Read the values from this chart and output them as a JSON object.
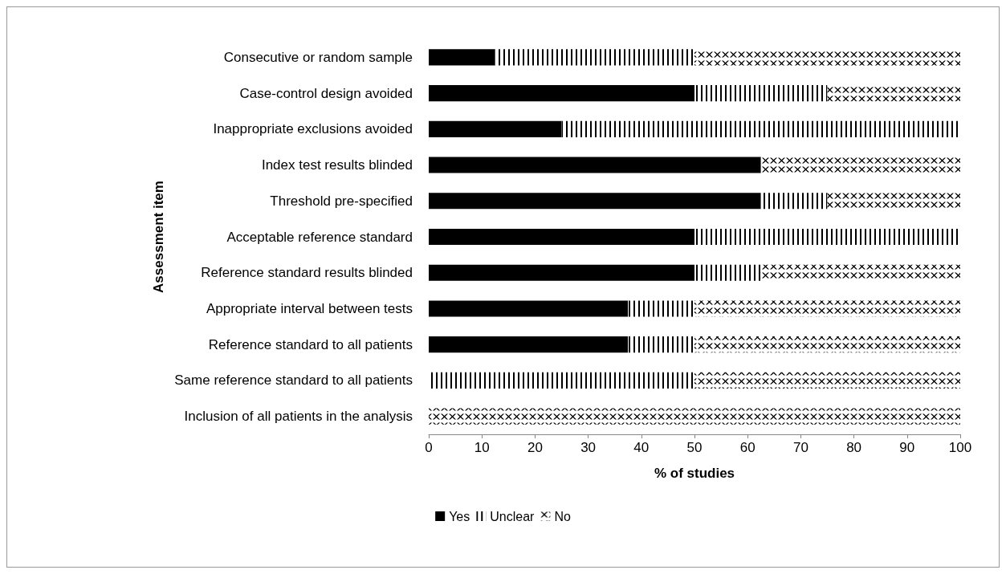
{
  "chart_data": {
    "type": "bar",
    "orientation": "horizontal",
    "stacked": true,
    "xlabel": "% of studies",
    "ylabel": "Assessment item",
    "categories": [
      "Consecutive or random sample",
      "Case-control design avoided",
      "Inappropriate exclusions avoided",
      "Index test results blinded",
      "Threshold pre-specified",
      "Acceptable reference standard",
      "Reference standard results blinded",
      "Appropriate interval between tests",
      "Reference standard to all patients",
      "Same reference standard to all patients",
      "Inclusion of all patients in the analysis"
    ],
    "series": [
      {
        "name": "Yes",
        "color": "#000000",
        "values": [
          12.5,
          50,
          25,
          62.5,
          62.5,
          50,
          50,
          37.5,
          37.5,
          0,
          0
        ]
      },
      {
        "name": "Unclear",
        "color": "#000000",
        "values": [
          37.5,
          25,
          75,
          0,
          12.5,
          50,
          12.5,
          12.5,
          12.5,
          50,
          0
        ]
      },
      {
        "name": "No",
        "color": "#000000",
        "values": [
          50,
          25,
          0,
          37.5,
          25,
          0,
          37.5,
          50,
          50,
          50,
          100
        ]
      }
    ],
    "xlim": [
      0,
      100
    ],
    "xticks": [
      0,
      10,
      20,
      30,
      40,
      50,
      60,
      70,
      80,
      90,
      100
    ],
    "grid": false,
    "legend": "bottom"
  }
}
